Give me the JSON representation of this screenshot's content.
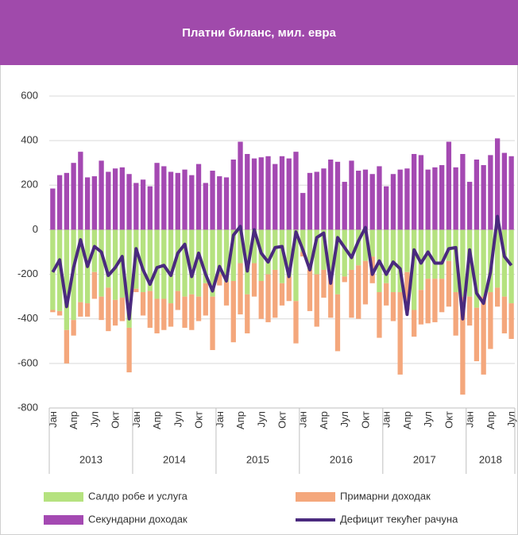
{
  "chart_data": {
    "type": "bar",
    "stacked": true,
    "title": "Платни биланс, мил. евра",
    "categories": [
      "Јан",
      null,
      null,
      "Апр",
      null,
      null,
      "Јул",
      null,
      null,
      "Окт",
      null,
      null,
      "Јан",
      null,
      null,
      "Апр",
      null,
      null,
      "Јул",
      null,
      null,
      "Окт",
      null,
      null,
      "Јан",
      null,
      null,
      "Апр",
      null,
      null,
      "Јул",
      null,
      null,
      "Окт",
      null,
      null,
      "Јан",
      null,
      null,
      "Апр",
      null,
      null,
      "Јул",
      null,
      null,
      "Окт",
      null,
      null,
      "Јан",
      null,
      null,
      "Апр",
      null,
      null,
      "Јул",
      null,
      null,
      "Окт",
      null,
      null,
      "Јан",
      null,
      null,
      "Апр",
      null,
      null,
      "Јул"
    ],
    "years": [
      "2013",
      "2014",
      "2015",
      "2016",
      "2017",
      "2018"
    ],
    "ylim": [
      -800,
      600
    ],
    "yticks": [
      -800,
      -600,
      -400,
      -200,
      0,
      200,
      400,
      600
    ],
    "grid": true,
    "legend": "bottom",
    "series": [
      {
        "name": "Салдо робе и услуга",
        "color": "#b5e27f",
        "type": "bar",
        "values": [
          -360,
          -365,
          -450,
          -405,
          -325,
          -330,
          -190,
          -300,
          -260,
          -315,
          -305,
          -440,
          -265,
          -280,
          -275,
          -310,
          -310,
          -330,
          -275,
          -300,
          -290,
          -300,
          -240,
          -300,
          -200,
          -235,
          -230,
          -150,
          -290,
          -150,
          -230,
          -200,
          -180,
          -240,
          -210,
          -320,
          -100,
          -180,
          -200,
          -180,
          -200,
          -290,
          -210,
          -180,
          -160,
          -140,
          -120,
          -280,
          -240,
          -280,
          -280,
          -190,
          -360,
          -270,
          -220,
          -220,
          -220,
          -140,
          -280,
          -300,
          -300,
          -350,
          -300,
          -280,
          -260,
          -300,
          -330
        ]
      },
      {
        "name": "Примарни доходак",
        "color": "#f4a77c",
        "type": "bar",
        "values": [
          -10,
          -20,
          -150,
          -70,
          -65,
          -60,
          -120,
          -105,
          -195,
          -115,
          -105,
          -200,
          -15,
          -105,
          -165,
          -155,
          -140,
          -105,
          -85,
          -140,
          -160,
          -110,
          -145,
          -240,
          -50,
          -105,
          -275,
          -230,
          -175,
          -150,
          -170,
          -215,
          -215,
          -100,
          -110,
          -190,
          -20,
          -185,
          -235,
          -125,
          -195,
          -255,
          -25,
          -215,
          -240,
          -195,
          -120,
          -205,
          -100,
          -130,
          -370,
          -170,
          -120,
          -155,
          -200,
          -195,
          -150,
          -205,
          -195,
          -440,
          -130,
          -240,
          -350,
          -255,
          -85,
          -165,
          -160
        ]
      },
      {
        "name": "Секундарни доходак",
        "color": "#a449b2",
        "type": "bar",
        "values": [
          185,
          245,
          255,
          300,
          350,
          235,
          240,
          310,
          260,
          275,
          280,
          250,
          210,
          225,
          195,
          300,
          285,
          260,
          255,
          270,
          245,
          295,
          210,
          265,
          240,
          235,
          315,
          395,
          340,
          320,
          325,
          330,
          295,
          330,
          320,
          350,
          165,
          255,
          260,
          275,
          315,
          305,
          215,
          310,
          265,
          270,
          250,
          285,
          195,
          250,
          270,
          275,
          340,
          335,
          270,
          280,
          290,
          395,
          280,
          340,
          215,
          315,
          290,
          335,
          410,
          345,
          330
        ]
      },
      {
        "name": "Дефицит текућег рачуна",
        "color": "#4a2a7e",
        "type": "line",
        "values": [
          -190,
          -135,
          -345,
          -170,
          -45,
          -165,
          -75,
          -100,
          -205,
          -170,
          -120,
          -400,
          -85,
          -180,
          -245,
          -170,
          -160,
          -205,
          -105,
          -65,
          -210,
          -105,
          -200,
          -275,
          -165,
          -230,
          -25,
          15,
          -185,
          0,
          -105,
          -145,
          -80,
          -75,
          -210,
          -10,
          -90,
          -180,
          -35,
          -15,
          -240,
          -35,
          -80,
          -125,
          -50,
          10,
          -200,
          -140,
          -200,
          -145,
          -175,
          -380,
          -90,
          -150,
          -100,
          -150,
          -150,
          -85,
          -80,
          -400,
          -90,
          -285,
          -330,
          -190,
          60,
          -120,
          -160
        ]
      }
    ]
  }
}
